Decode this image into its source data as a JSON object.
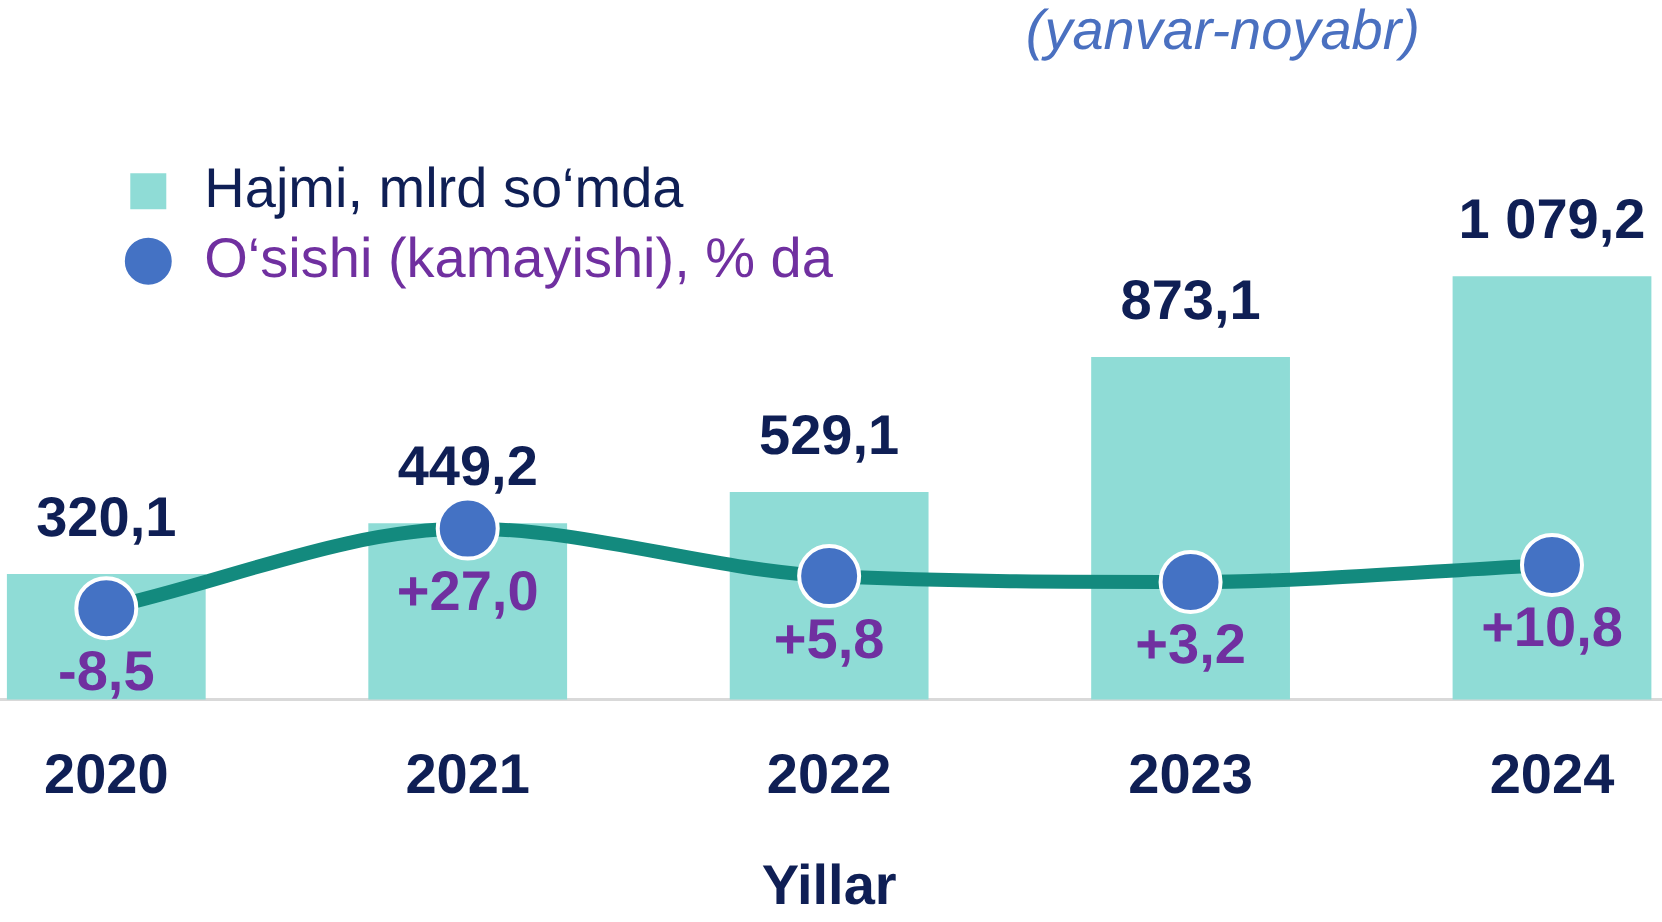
{
  "chart_data": {
    "type": "bar",
    "title": "(yanvar-noyabr)",
    "xlabel": "Yillar",
    "categories": [
      "2020",
      "2021",
      "2022",
      "2023",
      "2024"
    ],
    "series": [
      {
        "name": "Hajmi, mlrd so‘mda",
        "color": "#8fdcd6",
        "values": [
          320.1,
          449.2,
          529.1,
          873.1,
          1079.2
        ],
        "value_labels": [
          "320,1",
          "449,2",
          "529,1",
          "873,1",
          "1 079,2"
        ]
      },
      {
        "name": "O‘sishi (kamayishi), % da",
        "type": "line",
        "axis": "y2",
        "color": "#138a7e",
        "colors": [
          "#4472c4",
          "#4472c4",
          "#4472c4",
          "#4472c4",
          "#4472c4"
        ],
        "values": [
          -8.5,
          27.0,
          5.8,
          3.2,
          10.8
        ],
        "value_labels": [
          "-8,5",
          "+27,0",
          "+5,8",
          "+3,2",
          "+10,8"
        ]
      }
    ],
    "tick_labels": "x",
    "legend": "top left",
    "marker": "circle"
  }
}
